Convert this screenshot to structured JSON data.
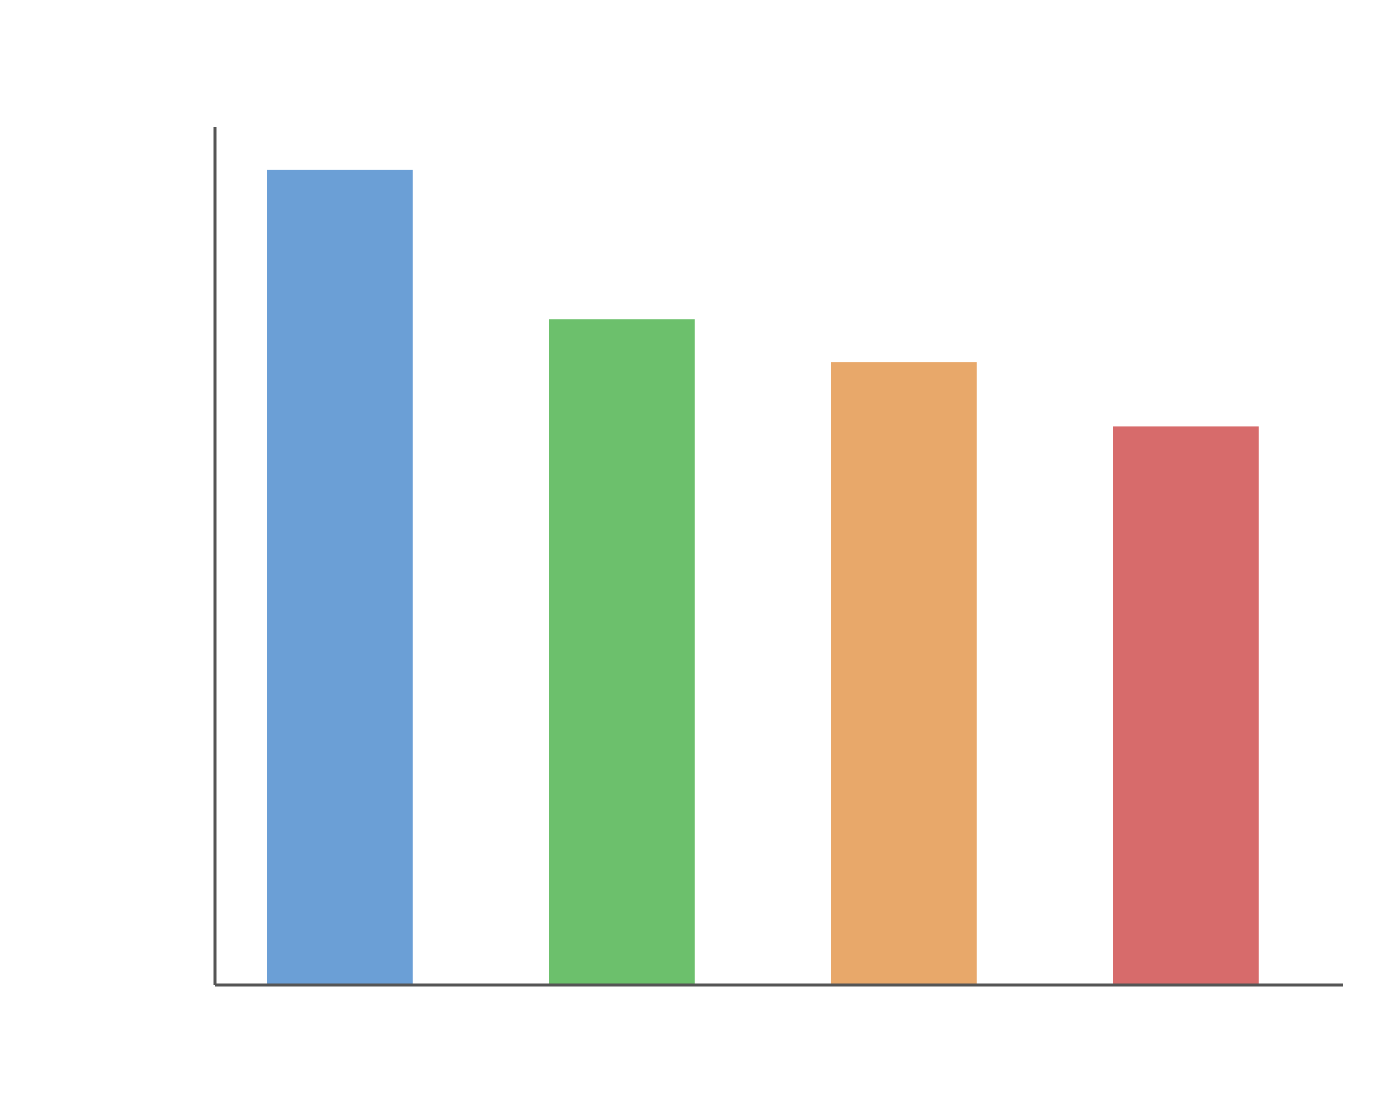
{
  "chart_data": {
    "type": "bar",
    "categories": [
      "",
      "",
      "",
      ""
    ],
    "values": [
      95,
      77.6,
      72.6,
      65.1
    ],
    "colors": [
      "#6b9fd6",
      "#6cc06c",
      "#e8a86a",
      "#d76b6b"
    ],
    "ylim": [
      0,
      100
    ],
    "grid": false,
    "legend": "none"
  }
}
